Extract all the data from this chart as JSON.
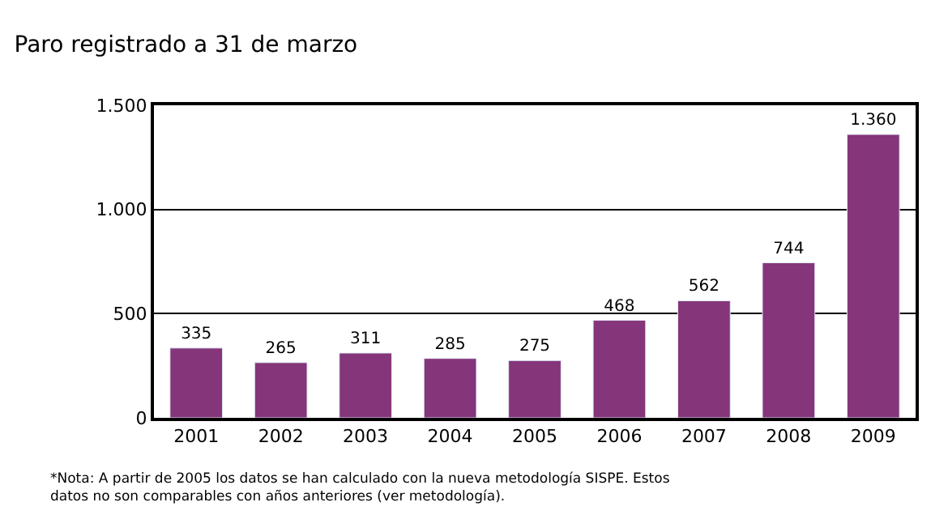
{
  "chart_data": {
    "type": "bar",
    "title": "Paro registrado a 31 de marzo",
    "categories": [
      "2001",
      "2002",
      "2003",
      "2004",
      "2005",
      "2006",
      "2007",
      "2008",
      "2009"
    ],
    "values": [
      335,
      265,
      311,
      285,
      275,
      468,
      562,
      744,
      1360
    ],
    "value_labels": [
      "335",
      "265",
      "311",
      "285",
      "275",
      "468",
      "562",
      "744",
      "1.360"
    ],
    "color": "#85357a",
    "ylim": [
      0,
      1500
    ],
    "yticks": [
      0,
      500,
      {
        "value": 1000,
        "label": "1.000"
      },
      {
        "value": 1500,
        "label": "1.500"
      }
    ],
    "grid": "y",
    "legend": false,
    "annotations": [
      "*Nota: A partir de 2005 los datos se han calculado con la nueva metodología SISPE. Estos\ndatos no son comparables con años anteriores (ver metodología)."
    ]
  }
}
